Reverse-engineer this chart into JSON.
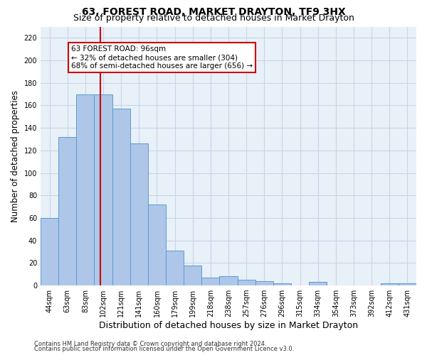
{
  "title": "63, FOREST ROAD, MARKET DRAYTON, TF9 3HX",
  "subtitle": "Size of property relative to detached houses in Market Drayton",
  "xlabel": "Distribution of detached houses by size in Market Drayton",
  "ylabel": "Number of detached properties",
  "categories": [
    "44sqm",
    "63sqm",
    "83sqm",
    "102sqm",
    "121sqm",
    "141sqm",
    "160sqm",
    "179sqm",
    "199sqm",
    "218sqm",
    "238sqm",
    "257sqm",
    "276sqm",
    "296sqm",
    "315sqm",
    "334sqm",
    "354sqm",
    "373sqm",
    "392sqm",
    "412sqm",
    "431sqm"
  ],
  "values": [
    60,
    132,
    170,
    170,
    157,
    126,
    72,
    31,
    18,
    7,
    8,
    5,
    4,
    2,
    0,
    3,
    0,
    0,
    0,
    2,
    2
  ],
  "bar_color": "#aec6e8",
  "bar_edge_color": "#5b9bd5",
  "vline_x_index": 2.85,
  "vline_color": "#cc0000",
  "annotation_text": "63 FOREST ROAD: 96sqm\n← 32% of detached houses are smaller (304)\n68% of semi-detached houses are larger (656) →",
  "annotation_box_color": "#ffffff",
  "annotation_box_edge": "#cc0000",
  "ylim": [
    0,
    230
  ],
  "yticks": [
    0,
    20,
    40,
    60,
    80,
    100,
    120,
    140,
    160,
    180,
    200,
    220
  ],
  "grid_color": "#c8d4e8",
  "bg_color": "#e8f0f8",
  "footer1": "Contains HM Land Registry data © Crown copyright and database right 2024.",
  "footer2": "Contains public sector information licensed under the Open Government Licence v3.0.",
  "title_fontsize": 10,
  "subtitle_fontsize": 9,
  "tick_fontsize": 7,
  "ylabel_fontsize": 8.5,
  "xlabel_fontsize": 9,
  "footer_fontsize": 6,
  "annot_fontsize": 7.5
}
